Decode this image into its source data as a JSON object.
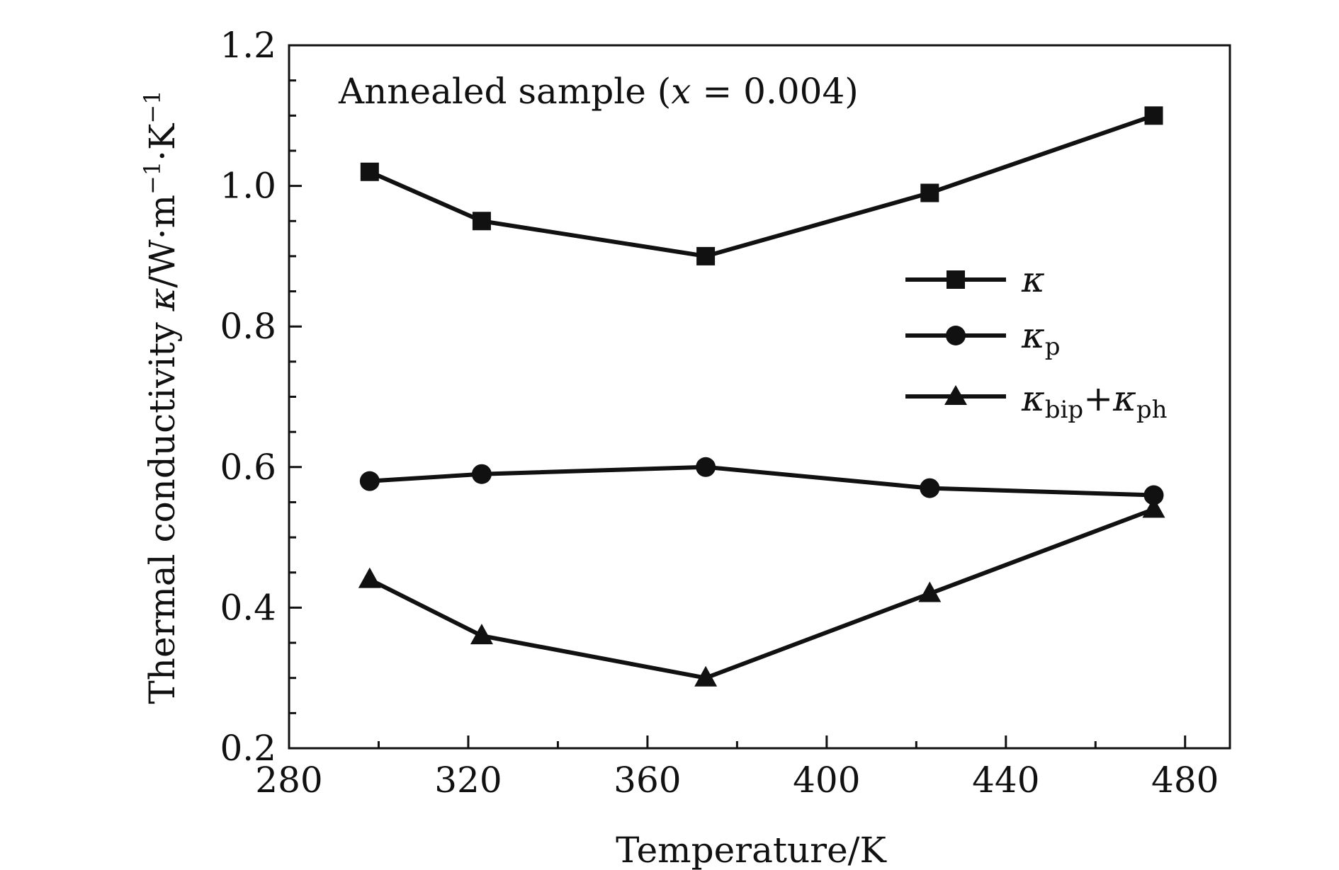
{
  "chart_data": {
    "type": "line",
    "title": "",
    "annotation": {
      "prefix": "Annealed sample (",
      "var": "x",
      "suffix": " = 0.004)"
    },
    "xlabel": "Temperature/K",
    "ylabel": {
      "prefix": "Thermal conductivity ",
      "kappa": "κ",
      "units": "/W·m",
      "sup1": "−1",
      "mid": "·K",
      "sup2": "−1"
    },
    "xlim": [
      280,
      490
    ],
    "ylim": [
      0.2,
      1.2
    ],
    "xticks": [
      280,
      320,
      360,
      400,
      440,
      480
    ],
    "xtick_labels": [
      "280",
      "320",
      "360",
      "400",
      "440",
      "480"
    ],
    "yticks": [
      0.2,
      0.4,
      0.6,
      0.8,
      1.0,
      1.2
    ],
    "ytick_labels": [
      "0.2",
      "0.4",
      "0.6",
      "0.8",
      "1.0",
      "1.2"
    ],
    "x": [
      298,
      323,
      373,
      423,
      473
    ],
    "series": [
      {
        "name": "κ",
        "marker": "square",
        "values": [
          1.02,
          0.95,
          0.9,
          0.99,
          1.1
        ]
      },
      {
        "name": "κp",
        "marker": "circle",
        "values": [
          0.58,
          0.59,
          0.6,
          0.57,
          0.56
        ]
      },
      {
        "name": "κbip+κph",
        "marker": "triangle",
        "values": [
          0.44,
          0.36,
          0.3,
          0.42,
          0.54
        ]
      }
    ],
    "legend": {
      "position": "right",
      "entries": [
        {
          "main": "κ",
          "sub": ""
        },
        {
          "main": "κ",
          "sub": "p"
        },
        {
          "main": "κ",
          "sub": "bip",
          "plus": "+",
          "main2": "κ",
          "sub2": "ph"
        }
      ]
    },
    "grid": false,
    "colors": {
      "line": "#111111",
      "background": "#ffffff"
    }
  }
}
